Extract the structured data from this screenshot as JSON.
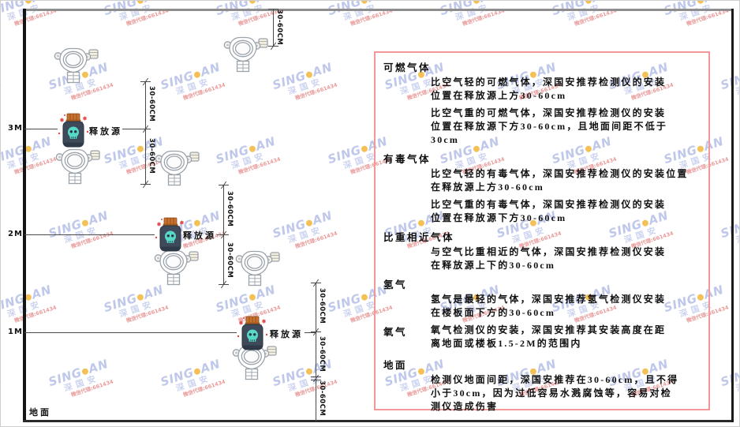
{
  "watermark": {
    "brand_left": "SING",
    "brand_right": "AN",
    "brand_cn": "深国安",
    "agent_line": "微信代理:661434"
  },
  "colors": {
    "panel_border": "#f19999",
    "watermark_blue": "#7a8cd4",
    "watermark_dot_yellow": "#f2b63c",
    "source_body": "#3e4a5a",
    "source_cap": "#c8722e",
    "sparkle_red": "#e14b4b"
  },
  "diagram": {
    "ground_label": "地面",
    "release_source_label": "释放源",
    "dim_label": "30-60CM",
    "heights": [
      "3M",
      "2M",
      "1M"
    ]
  },
  "panel": {
    "sections": [
      {
        "heading": "可燃气体",
        "paras": [
          [
            "比空气轻的可燃气体，深国安推荐检测仪的安装",
            "位置在释放源上方30-60cm"
          ],
          [
            "比空气重的可燃气体，深国安推荐检测仪的安装",
            "位置在释放源下方30-60cm，且地面间距不低于",
            "30cm"
          ]
        ]
      },
      {
        "heading": "有毒气体",
        "paras": [
          [
            "比空气轻的有毒气体，深国安推荐检测仪的安装位置",
            "在释放源上方30-60cm"
          ],
          [
            "比空气重的有毒气体，深国安推荐检测仪的安装",
            "位置在释放源下方30-60cm"
          ]
        ]
      },
      {
        "heading": "比重相近气体",
        "paras": [
          [
            "与空气比重相近的气体，深国安推荐检测仪安装",
            "在释放源上下的30-60cm"
          ]
        ]
      },
      {
        "heading": "氢气",
        "paras": [
          [
            "氢气是最轻的气体，深国安推荐氢气检测仪安装",
            "在楼板面下方的30-60cm"
          ]
        ]
      },
      {
        "heading": "氧气",
        "inline": true,
        "paras": [
          [
            "氧气检测仪的安装，深国安推荐其安装高度在距",
            "离地面或楼板1.5-2M的范围内"
          ]
        ]
      },
      {
        "heading": "地面",
        "paras": [
          [
            "检测仪地面间距，深国安推荐在30-60cm，且不得",
            "小于30cm，因为过低容易水溅腐蚀等，容易对检",
            "测仪造成伤害"
          ]
        ]
      }
    ]
  }
}
